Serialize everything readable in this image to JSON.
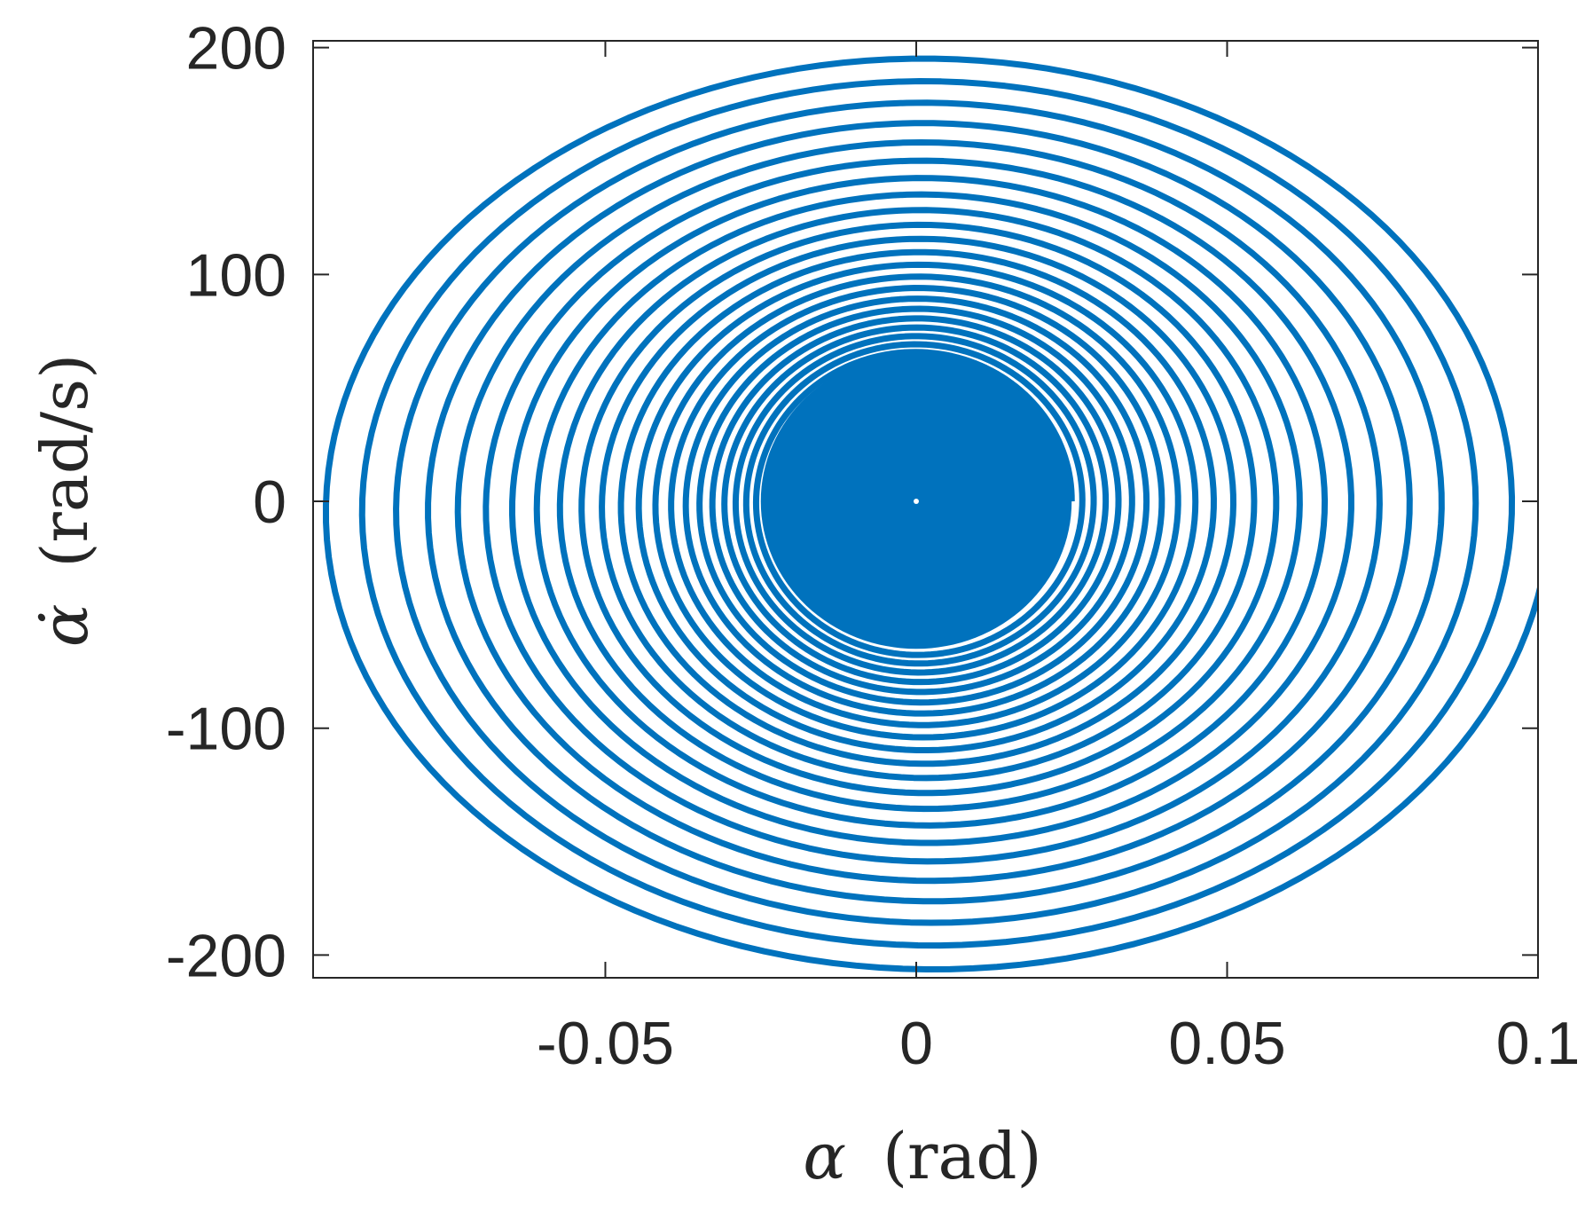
{
  "chart_data": {
    "type": "line",
    "title": "",
    "xlabel": "α (rad)",
    "xlabel_symbol": "α",
    "xlabel_unit": "(rad)",
    "ylabel": "α̇ (rad/s)",
    "ylabel_symbol": "α̇",
    "ylabel_unit": "(rad/s)",
    "xlim": [
      -0.097,
      0.1
    ],
    "ylim": [
      -210,
      203
    ],
    "xticks": [
      -0.05,
      0,
      0.05,
      0.1
    ],
    "xtick_labels": [
      "-0.05",
      "0",
      "0.05",
      "0.1"
    ],
    "yticks": [
      -200,
      -100,
      0,
      100,
      200
    ],
    "ytick_labels": [
      "-200",
      "-100",
      "0",
      "100",
      "200"
    ],
    "grid": false,
    "box": true,
    "series": [
      {
        "color": "#0072BD",
        "description": "decaying phase-portrait spiral from (0.1, 0) toward the origin",
        "start": [
          0.1,
          0
        ],
        "end": [
          0,
          0
        ],
        "x_amplitude_start": 0.1,
        "y_amplitude_start": 206,
        "x_center_offset": 0.002,
        "y_center_offset": -3,
        "visible_turns": 22,
        "inner_dense_radius_x": 0.025,
        "inner_dense_radius_y": 65
      }
    ]
  }
}
